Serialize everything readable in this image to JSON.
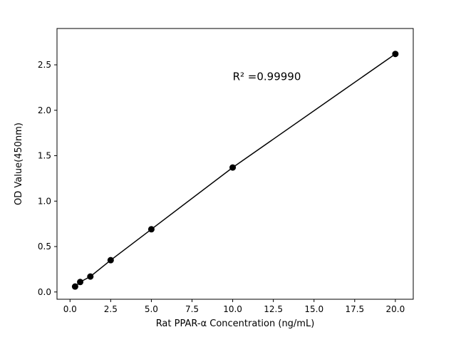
{
  "chart_data": {
    "type": "scatter",
    "title": "",
    "xlabel": "Rat PPAR-α Concentration (ng/mL)",
    "ylabel": "OD Value(450nm)",
    "x": [
      0.3125,
      0.625,
      1.25,
      2.5,
      5,
      10,
      20
    ],
    "y": [
      0.06,
      0.11,
      0.17,
      0.35,
      0.69,
      1.37,
      2.62
    ],
    "line": true,
    "line_color": "#000000",
    "line_width": 1.5,
    "marker_color": "#000000",
    "marker_radius": 4.5,
    "background_color": "#ffffff",
    "grid": false,
    "legend": "none",
    "xlim": [
      -0.8,
      21.1
    ],
    "ylim": [
      -0.08,
      2.9
    ],
    "xticks": {
      "values": [
        0,
        2.5,
        5,
        7.5,
        10,
        12.5,
        15,
        17.5,
        20
      ],
      "labels": [
        "0.0",
        "2.5",
        "5.0",
        "7.5",
        "10.0",
        "12.5",
        "15.0",
        "17.5",
        "20.0"
      ]
    },
    "yticks": {
      "values": [
        0,
        0.5,
        1,
        1.5,
        2,
        2.5
      ],
      "labels": [
        "0.0",
        "0.5",
        "1.0",
        "1.5",
        "2.0",
        "2.5"
      ]
    },
    "annotation": {
      "text": "R² =0.99990",
      "x": 10,
      "y": 2.33
    }
  }
}
